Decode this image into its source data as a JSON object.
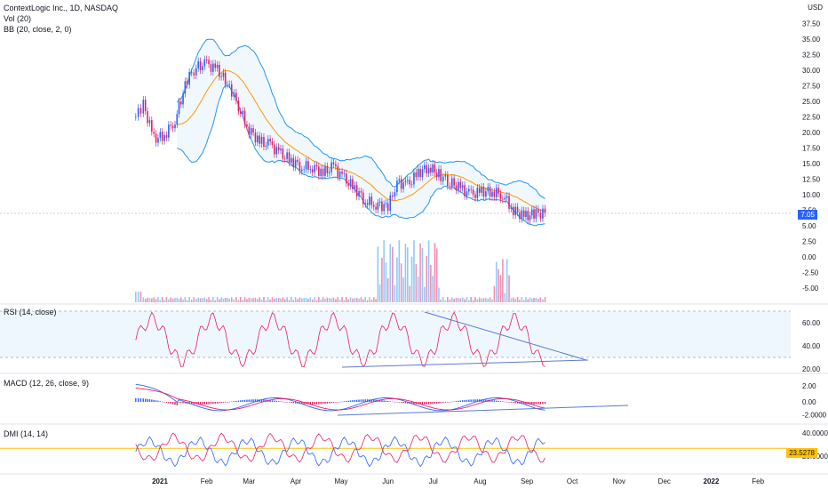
{
  "header": {
    "title": "ContextLogic Inc., 1D, NASDAQ",
    "vol": "Vol (20)",
    "bb": "BB (20, close, 2, 0)",
    "currency": "USD"
  },
  "colors": {
    "up": "#2962ff",
    "down": "#e91e63",
    "basis": "#ff9800",
    "band": "#2196f3",
    "rsi": "#e91e63",
    "macd": "#2962ff",
    "signal": "#e91e63",
    "dmi_plus": "#2962ff",
    "dmi_minus": "#e91e63",
    "adx_line": "#ffc107",
    "trend": "#5b7bd5"
  },
  "price_axis": [
    "37.50",
    "35.00",
    "32.50",
    "30.00",
    "27.50",
    "25.00",
    "22.50",
    "20.00",
    "17.50",
    "15.00",
    "12.50",
    "10.00",
    "7.50",
    "5.00",
    "2.50",
    "0.00",
    "-2.50",
    "-5.00"
  ],
  "last_price": "7.05",
  "rsi": {
    "label": "RSI (14, close)",
    "ticks": [
      "60.00",
      "40.00",
      "20.00"
    ]
  },
  "macd": {
    "label": "MACD (12, 26, close, 9)",
    "ticks": [
      "2.00",
      "0.00",
      "-2.0000"
    ]
  },
  "dmi": {
    "label": "DMI (14, 14)",
    "ticks": [
      "40.0000",
      "20.0000"
    ],
    "value": "23.5278"
  },
  "time_axis": [
    "2021",
    "Feb",
    "Mar",
    "Apr",
    "May",
    "Jun",
    "Jul",
    "Aug",
    "Sep",
    "Oct",
    "Nov",
    "Dec",
    "2022",
    "Feb"
  ],
  "chart_data": {
    "type": "candlestick",
    "price_points": [
      {
        "date": "2020-12-16",
        "close": 22.5
      },
      {
        "date": "2020-12-21",
        "close": 24.5
      },
      {
        "date": "2020-12-28",
        "close": 19.0
      },
      {
        "date": "2021-01-04",
        "close": 19.5
      },
      {
        "date": "2021-01-11",
        "close": 22.0
      },
      {
        "date": "2021-01-19",
        "close": 28.5
      },
      {
        "date": "2021-01-25",
        "close": 30.5
      },
      {
        "date": "2021-02-01",
        "close": 31.0
      },
      {
        "date": "2021-02-08",
        "close": 30.0
      },
      {
        "date": "2021-02-16",
        "close": 27.5
      },
      {
        "date": "2021-02-22",
        "close": 24.0
      },
      {
        "date": "2021-03-01",
        "close": 20.5
      },
      {
        "date": "2021-03-08",
        "close": 18.5
      },
      {
        "date": "2021-03-15",
        "close": 18.0
      },
      {
        "date": "2021-03-22",
        "close": 16.5
      },
      {
        "date": "2021-03-29",
        "close": 15.5
      },
      {
        "date": "2021-04-05",
        "close": 14.5
      },
      {
        "date": "2021-04-12",
        "close": 14.5
      },
      {
        "date": "2021-04-19",
        "close": 13.5
      },
      {
        "date": "2021-04-26",
        "close": 14.5
      },
      {
        "date": "2021-05-03",
        "close": 12.5
      },
      {
        "date": "2021-05-10",
        "close": 11.0
      },
      {
        "date": "2021-05-17",
        "close": 9.0
      },
      {
        "date": "2021-05-24",
        "close": 8.5
      },
      {
        "date": "2021-06-01",
        "close": 8.0
      },
      {
        "date": "2021-06-07",
        "close": 12.0
      },
      {
        "date": "2021-06-14",
        "close": 11.5
      },
      {
        "date": "2021-06-21",
        "close": 13.5
      },
      {
        "date": "2021-06-28",
        "close": 14.5
      },
      {
        "date": "2021-07-06",
        "close": 13.0
      },
      {
        "date": "2021-07-12",
        "close": 12.0
      },
      {
        "date": "2021-07-19",
        "close": 11.0
      },
      {
        "date": "2021-07-26",
        "close": 10.0
      },
      {
        "date": "2021-08-02",
        "close": 10.5
      },
      {
        "date": "2021-08-09",
        "close": 10.5
      },
      {
        "date": "2021-08-16",
        "close": 10.0
      },
      {
        "date": "2021-08-23",
        "close": 7.5
      },
      {
        "date": "2021-08-30",
        "close": 6.5
      },
      {
        "date": "2021-09-07",
        "close": 7.0
      },
      {
        "date": "2021-09-13",
        "close": 7.05
      }
    ]
  }
}
